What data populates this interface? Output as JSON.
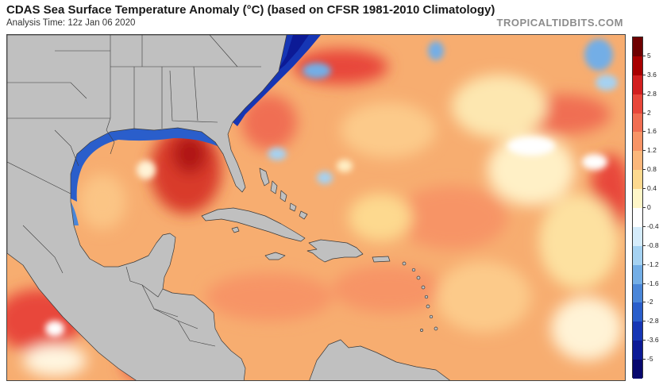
{
  "header": {
    "title": "CDAS Sea Surface Temperature Anomaly (°C) (based on CFSR 1981-2010 Climatology)",
    "subtitle": "Analysis Time: 12z Jan 06 2020",
    "credit": "TROPICALTIDBITS.COM"
  },
  "map": {
    "land_color": "#c0c0c0",
    "border_color": "#3a3a3a",
    "ocean_base_color": "#f7ad70"
  },
  "colorbar": {
    "labels": [
      "5",
      "3.6",
      "2.8",
      "2",
      "1.6",
      "1.2",
      "0.8",
      "0.4",
      "0",
      "-0.4",
      "-0.8",
      "-1.2",
      "-1.6",
      "-2",
      "-2.8",
      "-3.6",
      "-5"
    ],
    "colors": [
      "#6e0000",
      "#a80000",
      "#d21f1f",
      "#e8473a",
      "#f06e52",
      "#f79466",
      "#fbb77b",
      "#fdd98f",
      "#fff6c8",
      "#ffffff",
      "#d5ecfb",
      "#a5d2f2",
      "#73aee6",
      "#4a86d8",
      "#2a5ecb",
      "#1636b5",
      "#0c1a96",
      "#07086e"
    ]
  }
}
